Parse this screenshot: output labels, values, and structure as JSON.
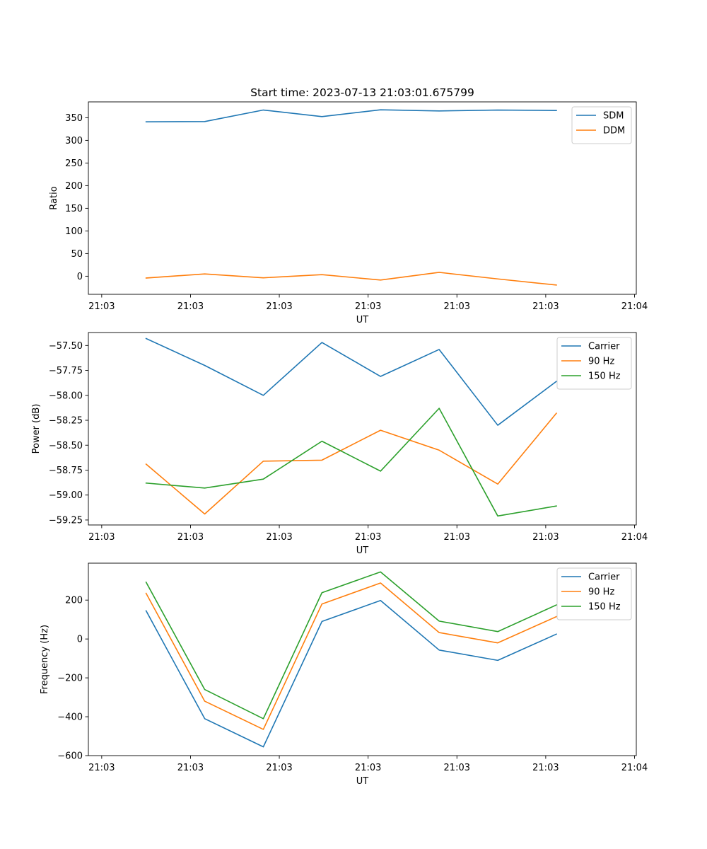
{
  "chart_data": [
    {
      "type": "line",
      "title": "Start time: 2023-07-13 21:03:01.675799",
      "xlabel": "UT",
      "ylabel": "Ratio",
      "x_ticks": [
        "21:03",
        "21:03",
        "21:03",
        "21:03",
        "21:03",
        "21:03",
        "21:04"
      ],
      "x_tick_positions": [
        0,
        1,
        2,
        3,
        4,
        5,
        6
      ],
      "xlim": [
        -0.15,
        6.02
      ],
      "x": [
        0.5,
        1.16,
        1.82,
        2.48,
        3.14,
        3.8,
        4.46,
        5.12
      ],
      "ylim": [
        -40,
        385
      ],
      "y_ticks": [
        0,
        50,
        100,
        150,
        200,
        250,
        300,
        350
      ],
      "y_tick_labels": [
        "0",
        "50",
        "100",
        "150",
        "200",
        "250",
        "300",
        "350"
      ],
      "legend_location": "upper right",
      "series": [
        {
          "name": "SDM",
          "color": "#1f77b4",
          "values": [
            341,
            341.5,
            367,
            352.5,
            367.5,
            365,
            367,
            366
          ]
        },
        {
          "name": "DDM",
          "color": "#ff7f0e",
          "values": [
            -4,
            5,
            -3.5,
            3.5,
            -8.5,
            8.5,
            -6,
            -19.5
          ]
        }
      ]
    },
    {
      "type": "line",
      "title": "",
      "xlabel": "UT",
      "ylabel": "Power (dB)",
      "x_ticks": [
        "21:03",
        "21:03",
        "21:03",
        "21:03",
        "21:03",
        "21:03",
        "21:04"
      ],
      "x_tick_positions": [
        0,
        1,
        2,
        3,
        4,
        5,
        6
      ],
      "xlim": [
        -0.15,
        6.02
      ],
      "x": [
        0.5,
        1.16,
        1.82,
        2.48,
        3.14,
        3.8,
        4.46,
        5.12
      ],
      "ylim": [
        -59.3,
        -57.37
      ],
      "y_ticks": [
        -59.25,
        -59.0,
        -58.75,
        -58.5,
        -58.25,
        -58.0,
        -57.75,
        -57.5
      ],
      "y_tick_labels": [
        "−59.25",
        "−59.00",
        "−58.75",
        "−58.50",
        "−58.25",
        "−58.00",
        "−57.75",
        "−57.50"
      ],
      "legend_location": "upper right",
      "series": [
        {
          "name": "Carrier",
          "color": "#1f77b4",
          "values": [
            -57.43,
            -57.7,
            -58.0,
            -57.47,
            -57.81,
            -57.54,
            -58.3,
            -57.86
          ]
        },
        {
          "name": "90 Hz",
          "color": "#ff7f0e",
          "values": [
            -58.69,
            -59.19,
            -58.66,
            -58.65,
            -58.35,
            -58.55,
            -58.89,
            -58.18
          ]
        },
        {
          "name": "150 Hz",
          "color": "#2ca02c",
          "values": [
            -58.88,
            -58.93,
            -58.84,
            -58.46,
            -58.76,
            -58.13,
            -59.21,
            -59.11
          ]
        }
      ]
    },
    {
      "type": "line",
      "title": "",
      "xlabel": "UT",
      "ylabel": "Frequency (Hz)",
      "x_ticks": [
        "21:03",
        "21:03",
        "21:03",
        "21:03",
        "21:03",
        "21:03",
        "21:04"
      ],
      "x_tick_positions": [
        0,
        1,
        2,
        3,
        4,
        5,
        6
      ],
      "xlim": [
        -0.15,
        6.02
      ],
      "x": [
        0.5,
        1.16,
        1.82,
        2.48,
        3.14,
        3.8,
        4.46,
        5.12
      ],
      "ylim": [
        -600,
        390
      ],
      "y_ticks": [
        -600,
        -400,
        -200,
        0,
        200
      ],
      "y_tick_labels": [
        "−600",
        "−400",
        "−200",
        "0",
        "200"
      ],
      "legend_location": "upper right",
      "series": [
        {
          "name": "Carrier",
          "color": "#1f77b4",
          "values": [
            145,
            -410,
            -555,
            90,
            198,
            -57,
            -110,
            25
          ]
        },
        {
          "name": "90 Hz",
          "color": "#ff7f0e",
          "values": [
            235,
            -320,
            -465,
            180,
            288,
            33,
            -20,
            115
          ]
        },
        {
          "name": "150 Hz",
          "color": "#2ca02c",
          "values": [
            292,
            -260,
            -410,
            238,
            345,
            92,
            38,
            175
          ]
        }
      ]
    }
  ]
}
